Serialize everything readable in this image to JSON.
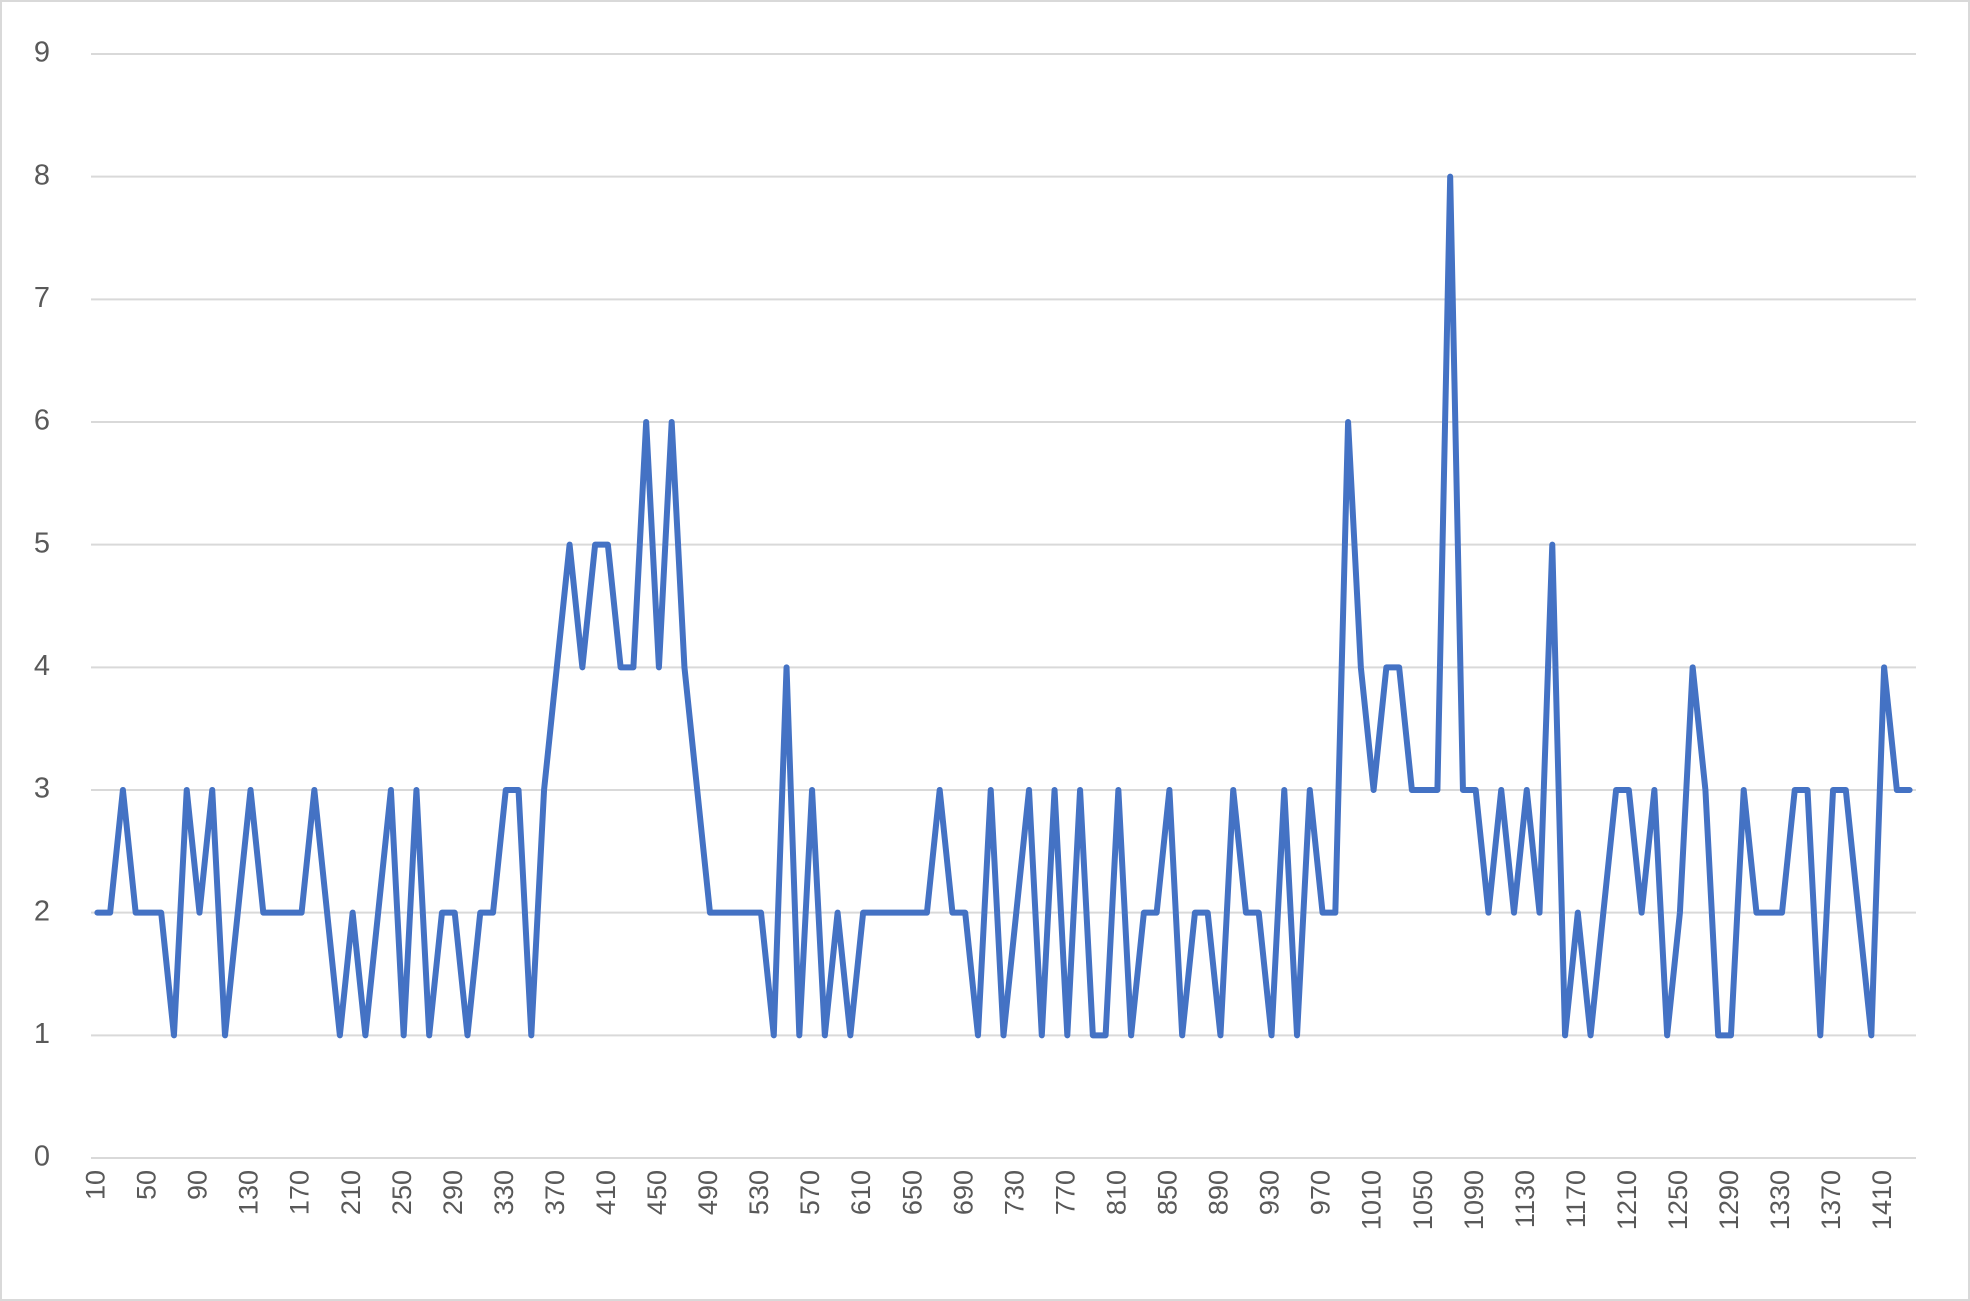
{
  "chart_data": {
    "type": "line",
    "categories": [
      "10",
      null,
      null,
      null,
      "50",
      null,
      null,
      null,
      "90",
      null,
      null,
      null,
      "130",
      null,
      null,
      null,
      "170",
      null,
      null,
      null,
      "210",
      null,
      null,
      null,
      "250",
      null,
      null,
      null,
      "290",
      null,
      null,
      null,
      "330",
      null,
      null,
      null,
      "370",
      null,
      null,
      null,
      "410",
      null,
      null,
      null,
      "450",
      null,
      null,
      null,
      "490",
      null,
      null,
      null,
      "530",
      null,
      null,
      null,
      "570",
      null,
      null,
      null,
      "610",
      null,
      null,
      null,
      "650",
      null,
      null,
      null,
      "690",
      null,
      null,
      null,
      "730",
      null,
      null,
      null,
      "770",
      null,
      null,
      null,
      "810",
      null,
      null,
      null,
      "850",
      null,
      null,
      null,
      "890",
      null,
      null,
      null,
      "930",
      null,
      null,
      null,
      "970",
      null,
      null,
      null,
      "1010",
      null,
      null,
      null,
      "1050",
      null,
      null,
      null,
      "1090",
      null,
      null,
      null,
      "1130",
      null,
      null,
      null,
      "1170",
      null,
      null,
      null,
      "1210",
      null,
      null,
      null,
      "1250",
      null,
      null,
      null,
      "1290",
      null,
      null,
      null,
      "1330",
      null,
      null,
      null,
      "1370",
      null,
      null,
      null,
      "1410",
      null,
      null
    ],
    "values": [
      2,
      2,
      3,
      2,
      2,
      2,
      1,
      3,
      2,
      3,
      1,
      2,
      3,
      2,
      2,
      2,
      2,
      3,
      2,
      1,
      2,
      1,
      2,
      3,
      1,
      3,
      1,
      2,
      2,
      1,
      2,
      2,
      3,
      3,
      1,
      3,
      4,
      5,
      4,
      5,
      5,
      4,
      4,
      6,
      4,
      6,
      4,
      3,
      2,
      2,
      2,
      2,
      2,
      1,
      4,
      1,
      3,
      1,
      2,
      1,
      2,
      2,
      2,
      2,
      2,
      2,
      3,
      2,
      2,
      1,
      3,
      1,
      2,
      3,
      1,
      3,
      1,
      3,
      1,
      1,
      3,
      1,
      2,
      2,
      3,
      1,
      2,
      2,
      1,
      3,
      2,
      2,
      1,
      3,
      1,
      3,
      2,
      2,
      6,
      4,
      3,
      4,
      4,
      3,
      3,
      3,
      8,
      3,
      3,
      2,
      3,
      2,
      3,
      2,
      5,
      1,
      2,
      1,
      2,
      3,
      3,
      2,
      3,
      1,
      2,
      4,
      3,
      1,
      1,
      3,
      2,
      2,
      2,
      3,
      3,
      1,
      3,
      3,
      2,
      1,
      4,
      3,
      3
    ],
    "color": "#4472c4",
    "ylim": [
      0,
      9
    ],
    "yticks": [
      0,
      1,
      2,
      3,
      4,
      5,
      6,
      7,
      8,
      9
    ],
    "grid": true
  }
}
